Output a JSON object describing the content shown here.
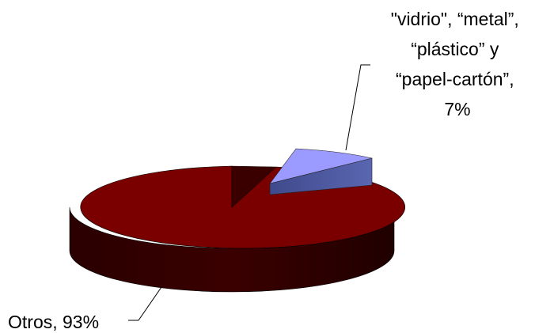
{
  "chart_data": {
    "type": "pie",
    "title": "",
    "slices": [
      {
        "name": "Otros",
        "value": 93,
        "label_lines": [
          "Otros, 93%"
        ],
        "color": "#7a0000"
      },
      {
        "name": "\"vidrio\", “metal”, “plástico” y “papel-cartón”",
        "value": 7,
        "label_lines": [
          "\"vidrio\", “metal”,",
          "“plástico” y",
          "“papel-cartón”,",
          "7%"
        ],
        "color": "#9b9bff",
        "exploded": true
      }
    ],
    "three_d": true,
    "legend": "none"
  }
}
